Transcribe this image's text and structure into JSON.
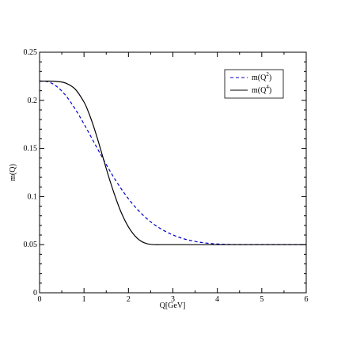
{
  "chart_data": {
    "type": "line",
    "xlabel": "Q[GeV]",
    "ylabel": "m(Q)",
    "xlim": [
      0,
      6
    ],
    "ylim": [
      0,
      0.25
    ],
    "x_ticks": [
      "0",
      "1",
      "2",
      "3",
      "4",
      "5",
      "6"
    ],
    "y_ticks": [
      "0",
      "0.05",
      "0.1",
      "0.15",
      "0.2",
      "0.25"
    ],
    "grid": false,
    "legend_position": "top-right",
    "series": [
      {
        "name": "m(Q2)",
        "label_base": "m(Q",
        "label_exp": "2",
        "label_close": ")",
        "color": "#0000cc",
        "dash": "dashed",
        "x": [
          0,
          0.2,
          0.4,
          0.6,
          0.8,
          1.0,
          1.2,
          1.4,
          1.6,
          1.8,
          2.0,
          2.2,
          2.4,
          2.6,
          2.8,
          3.0,
          3.2,
          3.4,
          3.6,
          3.8,
          4.0,
          4.2,
          4.4,
          4.6,
          4.8,
          5.0,
          5.2,
          5.4,
          5.6,
          5.8,
          6.0
        ],
        "y": [
          0.22,
          0.2192,
          0.2139,
          0.2044,
          0.1911,
          0.1754,
          0.1585,
          0.1416,
          0.1253,
          0.1106,
          0.0977,
          0.0867,
          0.0776,
          0.0703,
          0.0646,
          0.0601,
          0.0567,
          0.0543,
          0.0526,
          0.0514,
          0.0507,
          0.0503,
          0.0501,
          0.05,
          0.05,
          0.05,
          0.05,
          0.05,
          0.05,
          0.05,
          0.05
        ]
      },
      {
        "name": "m(Q4)",
        "label_base": "m(Q",
        "label_exp": "4",
        "label_close": ")",
        "color": "#000000",
        "dash": "solid",
        "x": [
          0,
          0.2,
          0.4,
          0.6,
          0.8,
          1.0,
          1.1,
          1.2,
          1.3,
          1.4,
          1.5,
          1.6,
          1.7,
          1.8,
          1.9,
          2.0,
          2.1,
          2.2,
          2.3,
          2.4,
          2.5,
          2.6,
          2.7,
          2.8,
          3.0,
          3.5,
          4.0,
          4.5,
          5.0,
          5.5,
          6.0
        ],
        "y": [
          0.22,
          0.22,
          0.2196,
          0.2177,
          0.2117,
          0.1982,
          0.1878,
          0.1751,
          0.1606,
          0.1449,
          0.1291,
          0.1141,
          0.1003,
          0.0876,
          0.0771,
          0.0684,
          0.0617,
          0.0566,
          0.0532,
          0.0512,
          0.0503,
          0.05,
          0.05,
          0.05,
          0.05,
          0.05,
          0.05,
          0.05,
          0.05,
          0.05,
          0.05
        ]
      }
    ]
  }
}
